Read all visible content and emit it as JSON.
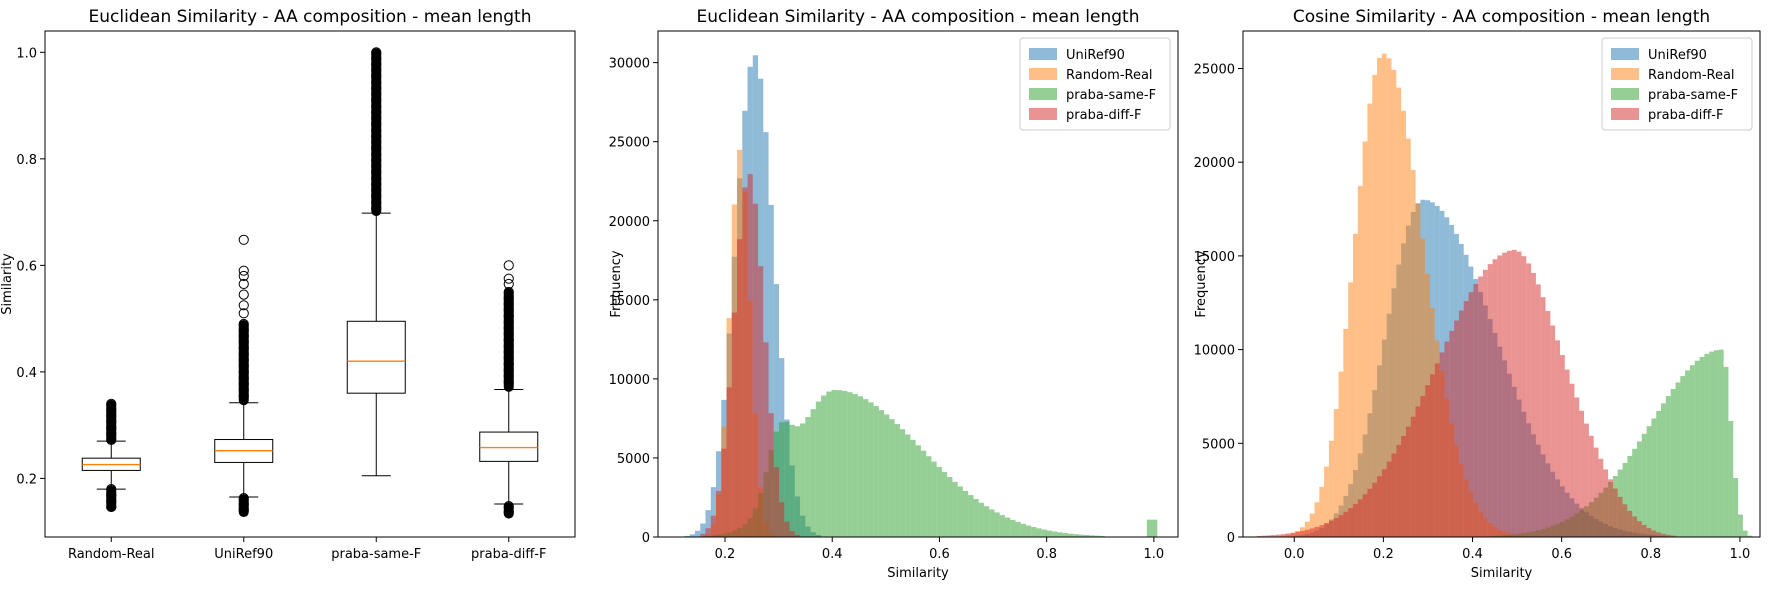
{
  "chart_data": [
    {
      "type": "box",
      "title": "Euclidean Similarity - AA composition - mean length",
      "xlabel": "",
      "ylabel": "Similarity",
      "ylim": [
        0.09,
        1.04
      ],
      "yticks": [
        0.2,
        0.4,
        0.6,
        0.8,
        1.0
      ],
      "ytick_labels": [
        "0.2",
        "0.4",
        "0.6",
        "0.8",
        "1.0"
      ],
      "categories": [
        "Random-Real",
        "UniRef90",
        "praba-same-F",
        "praba-diff-F"
      ],
      "boxes": [
        {
          "name": "Random-Real",
          "whislo": 0.18,
          "q1": 0.215,
          "median": 0.226,
          "q3": 0.238,
          "whishi": 0.27,
          "fliers_low": [
            0.145,
            0.18
          ],
          "fliers_high": [
            0.272,
            0.34
          ],
          "outliers": []
        },
        {
          "name": "UniRef90",
          "whislo": 0.165,
          "q1": 0.23,
          "median": 0.252,
          "q3": 0.273,
          "whishi": 0.342,
          "fliers_low": [
            0.135,
            0.163
          ],
          "fliers_high": [
            0.345,
            0.49
          ],
          "outliers": [
            0.51,
            0.525,
            0.545,
            0.565,
            0.58,
            0.59,
            0.648
          ]
        },
        {
          "name": "praba-same-F",
          "whislo": 0.205,
          "q1": 0.36,
          "median": 0.42,
          "q3": 0.495,
          "whishi": 0.698,
          "fliers_low": [],
          "fliers_high": [
            0.7,
            1.0
          ],
          "outliers": []
        },
        {
          "name": "praba-diff-F",
          "whislo": 0.152,
          "q1": 0.232,
          "median": 0.258,
          "q3": 0.287,
          "whishi": 0.367,
          "fliers_low": [
            0.132,
            0.148
          ],
          "fliers_high": [
            0.37,
            0.55
          ],
          "outliers": [
            0.565,
            0.575,
            0.6
          ]
        }
      ]
    },
    {
      "type": "histogram",
      "title": "Euclidean Similarity - AA composition - mean length",
      "xlabel": "Similarity",
      "ylabel": "Frequency",
      "xlim": [
        0.075,
        1.045
      ],
      "ylim": [
        0,
        32000
      ],
      "xticks": [
        0.2,
        0.4,
        0.6,
        0.8,
        1.0
      ],
      "xtick_labels": [
        "0.2",
        "0.4",
        "0.6",
        "0.8",
        "1.0"
      ],
      "yticks": [
        0,
        5000,
        10000,
        15000,
        20000,
        25000,
        30000
      ],
      "ytick_labels": [
        "0",
        "5000",
        "10000",
        "15000",
        "20000",
        "25000",
        "30000"
      ],
      "legend": {
        "position": "top-right",
        "entries": [
          "UniRef90",
          "Random-Real",
          "praba-same-F",
          "praba-diff-F"
        ]
      },
      "series": [
        {
          "name": "UniRef90",
          "color": "#1f77b4",
          "peaks": [
            [
              0.255,
              30500,
              0.036
            ]
          ]
        },
        {
          "name": "Random-Real",
          "color": "#ff7f0e",
          "peaks": [
            [
              0.228,
              24500,
              0.019
            ]
          ]
        },
        {
          "name": "praba-same-F",
          "color": "#2ca02c",
          "peaks": [
            [
              0.405,
              9300,
              0.075,
              0.16
            ],
            [
              0.3,
              3500,
              0.022
            ]
          ],
          "spikes": [
            [
              0.997,
              1100
            ]
          ]
        },
        {
          "name": "praba-diff-F",
          "color": "#d62728",
          "peaks": [
            [
              0.245,
              23000,
              0.028
            ]
          ]
        }
      ]
    },
    {
      "type": "histogram",
      "title": "Cosine Similarity - AA composition - mean length",
      "xlabel": "Similarity",
      "ylabel": "Frequency",
      "xlim": [
        -0.115,
        1.045
      ],
      "ylim": [
        0,
        27000
      ],
      "xticks": [
        0.0,
        0.2,
        0.4,
        0.6,
        0.8,
        1.0
      ],
      "xtick_labels": [
        "0.0",
        "0.2",
        "0.4",
        "0.6",
        "0.8",
        "1.0"
      ],
      "yticks": [
        0,
        5000,
        10000,
        15000,
        20000,
        25000
      ],
      "ytick_labels": [
        "0",
        "5000",
        "10000",
        "15000",
        "20000",
        "25000"
      ],
      "legend": {
        "position": "top-right",
        "entries": [
          "UniRef90",
          "Random-Real",
          "praba-same-F",
          "praba-diff-F"
        ]
      },
      "series": [
        {
          "name": "UniRef90",
          "color": "#1f77b4",
          "peaks": [
            [
              0.29,
              18000,
              0.085,
              0.16
            ]
          ]
        },
        {
          "name": "Random-Real",
          "color": "#ff7f0e",
          "peaks": [
            [
              0.2,
              25800,
              0.065,
              0.09
            ]
          ]
        },
        {
          "name": "praba-same-F",
          "color": "#2ca02c",
          "peaks": [
            [
              0.96,
              10000,
              0.16,
              0.02
            ]
          ]
        },
        {
          "name": "praba-diff-F",
          "color": "#d62728",
          "peaks": [
            [
              0.49,
              15200,
              0.17,
              0.1
            ],
            [
              0.66,
              2200,
              0.07
            ]
          ]
        }
      ]
    }
  ]
}
